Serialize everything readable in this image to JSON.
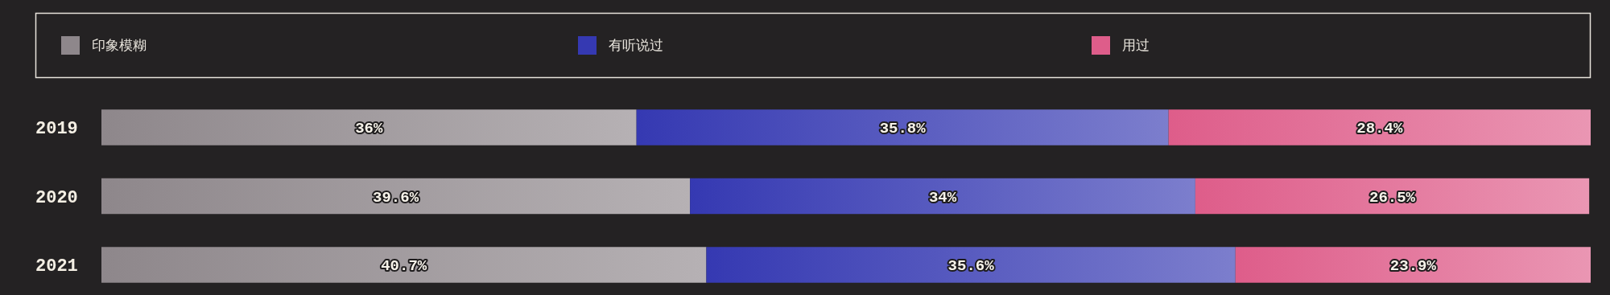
{
  "chart_data": {
    "type": "bar",
    "orientation": "horizontal",
    "stacked": true,
    "legend": "top",
    "categories": [
      "2019",
      "2020",
      "2021"
    ],
    "series": [
      {
        "name": "印象模糊",
        "color": "#8e878b",
        "values": [
          36,
          39.6,
          40.7
        ],
        "value_labels": [
          "36%",
          "39.6%",
          "40.7%"
        ]
      },
      {
        "name": "有听说过",
        "color": "#3539b2",
        "values": [
          35.8,
          34,
          35.6
        ],
        "value_labels": [
          "35.8%",
          "34%",
          "35.6%"
        ]
      },
      {
        "name": "用过",
        "color": "#de5d8a",
        "values": [
          28.4,
          26.5,
          23.9
        ],
        "value_labels": [
          "28.4%",
          "26.5%",
          "23.9%"
        ]
      }
    ]
  }
}
